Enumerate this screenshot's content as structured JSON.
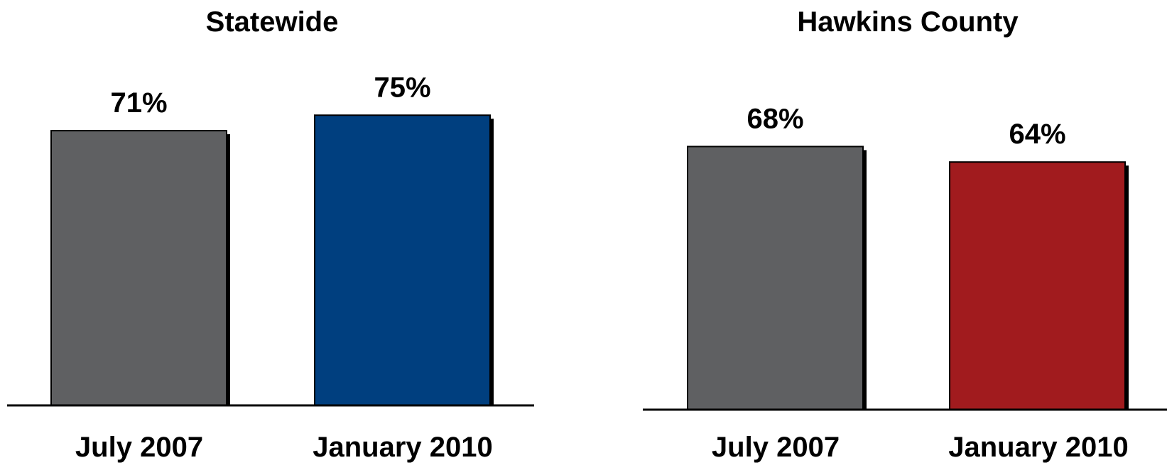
{
  "chart_data": [
    {
      "type": "bar",
      "title": "Statewide",
      "categories": [
        "July 2007",
        "January 2010"
      ],
      "values": [
        71,
        75
      ],
      "value_labels": [
        "71%",
        "75%"
      ],
      "colors": [
        "#5f6062",
        "#003f7f"
      ],
      "grid": false
    },
    {
      "type": "bar",
      "title": "Hawkins County",
      "categories": [
        "July 2007",
        "January 2010"
      ],
      "values": [
        68,
        64
      ],
      "value_labels": [
        "68%",
        "64%"
      ],
      "colors": [
        "#5f6062",
        "#a11b1e"
      ],
      "grid": false
    }
  ]
}
